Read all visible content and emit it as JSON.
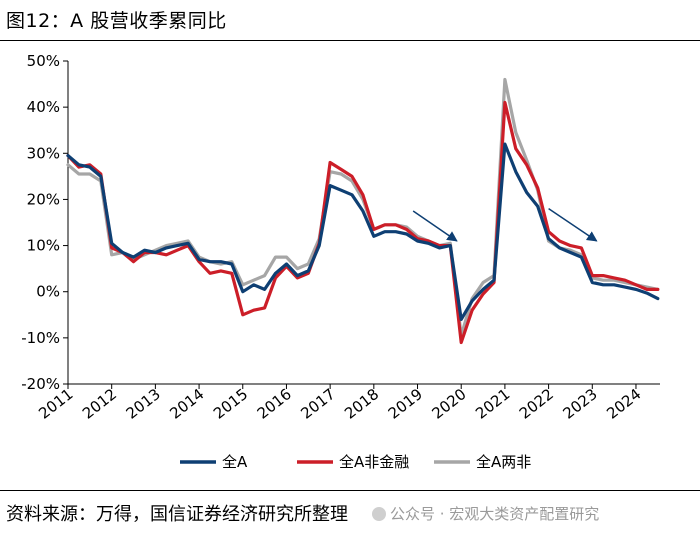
{
  "figure": {
    "title": "图12：A 股营收季累同比",
    "source": "资料来源：万得，国信证券经济研究所整理",
    "watermark": "公众号 · 宏观大类资产配置研究"
  },
  "chart_data": {
    "type": "line",
    "title": "",
    "xlabel": "",
    "ylabel": "",
    "ylim": [
      -20,
      50
    ],
    "xlim": [
      2011.0,
      2024.55
    ],
    "y_ticks": [
      50,
      40,
      30,
      20,
      10,
      0,
      -10,
      -20
    ],
    "y_tick_labels": [
      "50%",
      "40%",
      "30%",
      "20%",
      "10%",
      "0%",
      "-10%",
      "-20%"
    ],
    "x_ticks": [
      2011,
      2012,
      2013,
      2014,
      2015,
      2016,
      2017,
      2018,
      2019,
      2020,
      2021,
      2022,
      2023,
      2024
    ],
    "x_tick_labels": [
      "2011",
      "2012",
      "2013",
      "2014",
      "2015",
      "2016",
      "2017",
      "2018",
      "2019",
      "2020",
      "2021",
      "2022",
      "2023",
      "2024"
    ],
    "grid": false,
    "legend_position": "bottom",
    "x": [
      2011.0,
      2011.25,
      2011.5,
      2011.75,
      2012.0,
      2012.25,
      2012.5,
      2012.75,
      2013.0,
      2013.25,
      2013.5,
      2013.75,
      2014.0,
      2014.25,
      2014.5,
      2014.75,
      2015.0,
      2015.25,
      2015.5,
      2015.75,
      2016.0,
      2016.25,
      2016.5,
      2016.75,
      2017.0,
      2017.25,
      2017.5,
      2017.75,
      2018.0,
      2018.25,
      2018.5,
      2018.75,
      2019.0,
      2019.25,
      2019.5,
      2019.75,
      2020.0,
      2020.25,
      2020.5,
      2020.75,
      2021.0,
      2021.25,
      2021.5,
      2021.75,
      2022.0,
      2022.25,
      2022.5,
      2022.75,
      2023.0,
      2023.25,
      2023.5,
      2023.75,
      2024.0,
      2024.25,
      2024.5
    ],
    "series": [
      {
        "name": "全A",
        "color": "#0e3f73",
        "values": [
          29.5,
          27.5,
          27.0,
          25.0,
          10.5,
          8.5,
          7.5,
          9.0,
          8.5,
          9.5,
          10.0,
          10.5,
          7.0,
          6.5,
          6.5,
          6.0,
          0.0,
          1.5,
          0.5,
          4.0,
          6.0,
          3.5,
          4.5,
          10.0,
          23.0,
          22.0,
          21.0,
          17.5,
          12.0,
          13.0,
          13.0,
          12.5,
          11.0,
          10.5,
          9.5,
          10.0,
          -6.0,
          -2.0,
          0.5,
          2.5,
          32.0,
          26.0,
          21.5,
          18.5,
          11.5,
          9.5,
          8.5,
          7.5,
          2.0,
          1.5,
          1.5,
          1.0,
          0.5,
          -0.3,
          -1.5
        ]
      },
      {
        "name": "全A非金融",
        "color": "#cc1e28",
        "values": [
          29.5,
          27.0,
          27.5,
          25.5,
          9.5,
          8.5,
          6.5,
          8.5,
          8.5,
          8.0,
          9.0,
          10.0,
          6.5,
          4.0,
          4.5,
          4.0,
          -5.0,
          -4.0,
          -3.5,
          3.0,
          5.5,
          3.0,
          4.0,
          10.5,
          28.0,
          26.5,
          25.0,
          21.0,
          13.5,
          14.5,
          14.5,
          13.5,
          11.5,
          11.0,
          10.0,
          10.0,
          -11.0,
          -4.0,
          -0.5,
          2.0,
          41.0,
          31.0,
          27.5,
          22.5,
          13.0,
          11.0,
          10.0,
          9.5,
          3.5,
          3.5,
          3.0,
          2.5,
          1.5,
          0.5,
          0.5
        ]
      },
      {
        "name": "全A两非",
        "color": "#a6a6a6",
        "values": [
          27.5,
          25.5,
          25.5,
          24.0,
          8.0,
          8.5,
          7.0,
          8.0,
          9.0,
          10.0,
          10.5,
          11.0,
          7.5,
          6.5,
          6.0,
          6.5,
          1.5,
          2.5,
          3.5,
          7.5,
          7.5,
          5.0,
          6.0,
          11.5,
          26.0,
          25.5,
          24.0,
          20.0,
          13.5,
          14.5,
          14.5,
          14.0,
          12.0,
          11.0,
          10.0,
          10.5,
          -9.5,
          -1.5,
          2.0,
          3.5,
          46.0,
          34.5,
          28.5,
          22.0,
          11.0,
          9.5,
          9.0,
          8.0,
          3.0,
          2.5,
          2.5,
          2.0,
          1.5,
          1.0,
          0.5
        ]
      }
    ],
    "annotations": [
      {
        "type": "arrow",
        "from": [
          2018.9,
          17.5
        ],
        "to": [
          2019.9,
          11.0
        ]
      },
      {
        "type": "arrow",
        "from": [
          2022.0,
          18.0
        ],
        "to": [
          2023.1,
          11.0
        ]
      }
    ]
  }
}
